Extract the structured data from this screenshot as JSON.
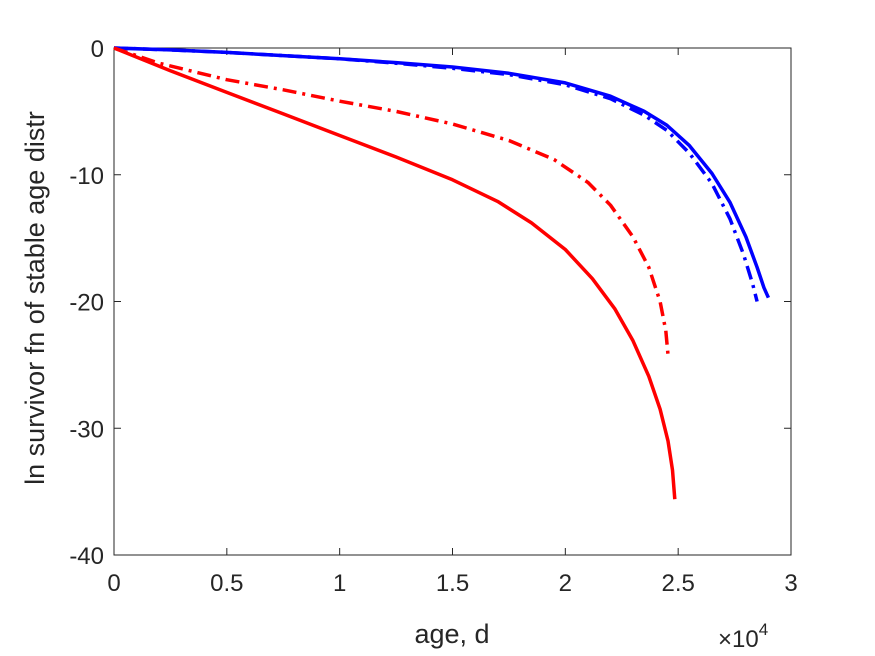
{
  "chart_data": {
    "type": "line",
    "title": "",
    "xlabel": "age, d",
    "ylabel": "ln survivor fn of stable age distr",
    "x_exponent_base": "×10",
    "x_exponent_power": "4",
    "xlim": [
      0,
      30000
    ],
    "ylim": [
      -40,
      0
    ],
    "xticks": [
      0,
      5000,
      10000,
      15000,
      20000,
      25000,
      30000
    ],
    "xtick_labels": [
      "0",
      "0.5",
      "1",
      "1.5",
      "2",
      "2.5",
      "3"
    ],
    "yticks": [
      0,
      -10,
      -20,
      -30,
      -40
    ],
    "ytick_labels": [
      "0",
      "-10",
      "-20",
      "-30",
      "-40"
    ],
    "grid": false,
    "legend": "none",
    "series": [
      {
        "color": "#0000ff",
        "style": "solid",
        "points": [
          [
            0,
            0
          ],
          [
            2500,
            -0.15
          ],
          [
            5000,
            -0.35
          ],
          [
            7500,
            -0.6
          ],
          [
            10000,
            -0.85
          ],
          [
            12500,
            -1.15
          ],
          [
            15000,
            -1.5
          ],
          [
            17500,
            -2.0
          ],
          [
            20000,
            -2.75
          ],
          [
            22000,
            -3.8
          ],
          [
            23500,
            -5.0
          ],
          [
            24500,
            -6.1
          ],
          [
            25500,
            -7.7
          ],
          [
            26500,
            -9.9
          ],
          [
            27300,
            -12.2
          ],
          [
            28000,
            -14.9
          ],
          [
            28500,
            -17.3
          ],
          [
            28800,
            -18.9
          ],
          [
            29000,
            -19.7
          ]
        ]
      },
      {
        "color": "#0000ff",
        "style": "dashdot",
        "points": [
          [
            0,
            0
          ],
          [
            2500,
            -0.15
          ],
          [
            5000,
            -0.35
          ],
          [
            7500,
            -0.6
          ],
          [
            10000,
            -0.85
          ],
          [
            12500,
            -1.2
          ],
          [
            15000,
            -1.6
          ],
          [
            17500,
            -2.1
          ],
          [
            20000,
            -2.9
          ],
          [
            22000,
            -4.0
          ],
          [
            23500,
            -5.3
          ],
          [
            24500,
            -6.5
          ],
          [
            25500,
            -8.3
          ],
          [
            26500,
            -10.7
          ],
          [
            27300,
            -13.5
          ],
          [
            27900,
            -16.3
          ],
          [
            28300,
            -18.6
          ],
          [
            28500,
            -20.0
          ]
        ]
      },
      {
        "color": "#ff0000",
        "style": "dashdot",
        "points": [
          [
            0,
            0
          ],
          [
            2000,
            -1.2
          ],
          [
            5000,
            -2.5
          ],
          [
            7500,
            -3.3
          ],
          [
            10000,
            -4.2
          ],
          [
            12500,
            -5.0
          ],
          [
            15000,
            -6.0
          ],
          [
            17500,
            -7.3
          ],
          [
            19500,
            -8.8
          ],
          [
            21000,
            -10.6
          ],
          [
            22000,
            -12.4
          ],
          [
            23000,
            -14.9
          ],
          [
            23700,
            -17.3
          ],
          [
            24200,
            -20.0
          ],
          [
            24450,
            -22.3
          ],
          [
            24550,
            -24.2
          ]
        ]
      },
      {
        "color": "#ff0000",
        "style": "solid",
        "points": [
          [
            0,
            0
          ],
          [
            2500,
            -1.8
          ],
          [
            5000,
            -3.5
          ],
          [
            7500,
            -5.2
          ],
          [
            10000,
            -6.9
          ],
          [
            12500,
            -8.6
          ],
          [
            15000,
            -10.4
          ],
          [
            17000,
            -12.1
          ],
          [
            18500,
            -13.8
          ],
          [
            20000,
            -15.9
          ],
          [
            21200,
            -18.2
          ],
          [
            22200,
            -20.6
          ],
          [
            23000,
            -23.1
          ],
          [
            23700,
            -25.9
          ],
          [
            24200,
            -28.5
          ],
          [
            24550,
            -31.0
          ],
          [
            24750,
            -33.3
          ],
          [
            24850,
            -35.6
          ]
        ]
      }
    ]
  }
}
